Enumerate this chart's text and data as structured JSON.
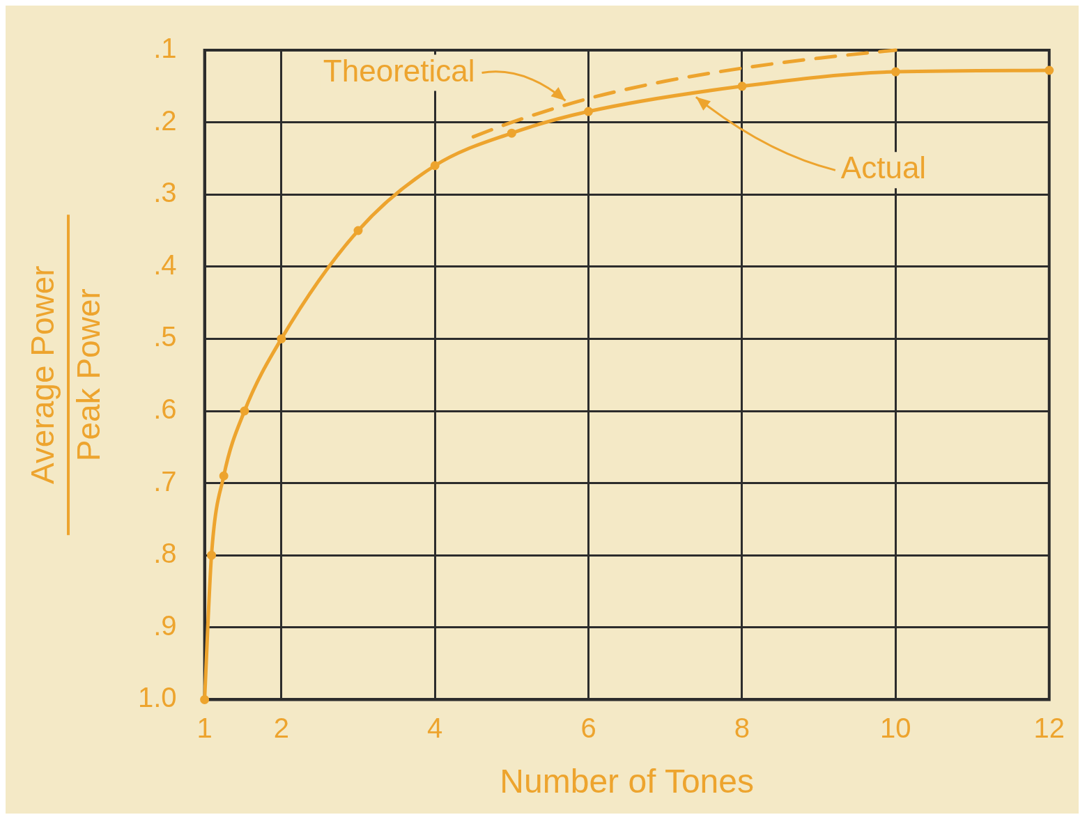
{
  "chart_data": {
    "type": "line",
    "xlabel": "Number of Tones",
    "ylabel": "Average Power\nPeak Power",
    "xlim": [
      1,
      12
    ],
    "xticks": [
      1,
      2,
      4,
      6,
      8,
      10,
      12
    ],
    "ylim": [
      1.0,
      0.1
    ],
    "yticks": [
      {
        "value": 0.1,
        "label": ".1"
      },
      {
        "value": 0.2,
        "label": ".2"
      },
      {
        "value": 0.3,
        "label": ".3"
      },
      {
        "value": 0.4,
        "label": ".4"
      },
      {
        "value": 0.5,
        "label": ".5"
      },
      {
        "value": 0.6,
        "label": ".6"
      },
      {
        "value": 0.7,
        "label": ".7"
      },
      {
        "value": 0.8,
        "label": ".8"
      },
      {
        "value": 0.9,
        "label": ".9"
      },
      {
        "value": 1.0,
        "label": "1.0"
      }
    ],
    "grid": true,
    "series": [
      {
        "color": "#eda42e",
        "x": [
          1,
          1.09,
          1.25,
          1.52,
          2,
          3,
          4,
          5,
          6,
          8,
          10,
          12
        ],
        "values": [
          1.0,
          0.8,
          0.69,
          0.6,
          0.5,
          0.35,
          0.26,
          0.215,
          0.185,
          0.15,
          0.13,
          0.128
        ],
        "marker": "circle",
        "line_style": "solid"
      },
      {
        "color": "#eda42e",
        "x": [
          4.5,
          5,
          6,
          7,
          8,
          9,
          10
        ],
        "values": [
          0.22,
          0.2,
          0.167,
          0.143,
          0.125,
          0.111,
          0.1
        ],
        "marker": "none",
        "line_style": "dashed"
      }
    ],
    "annotations": [
      {
        "text": "Theoretical",
        "x": 5.7,
        "y": 0.17
      },
      {
        "text": "Actual",
        "x": 7.4,
        "y": 0.165
      }
    ]
  }
}
